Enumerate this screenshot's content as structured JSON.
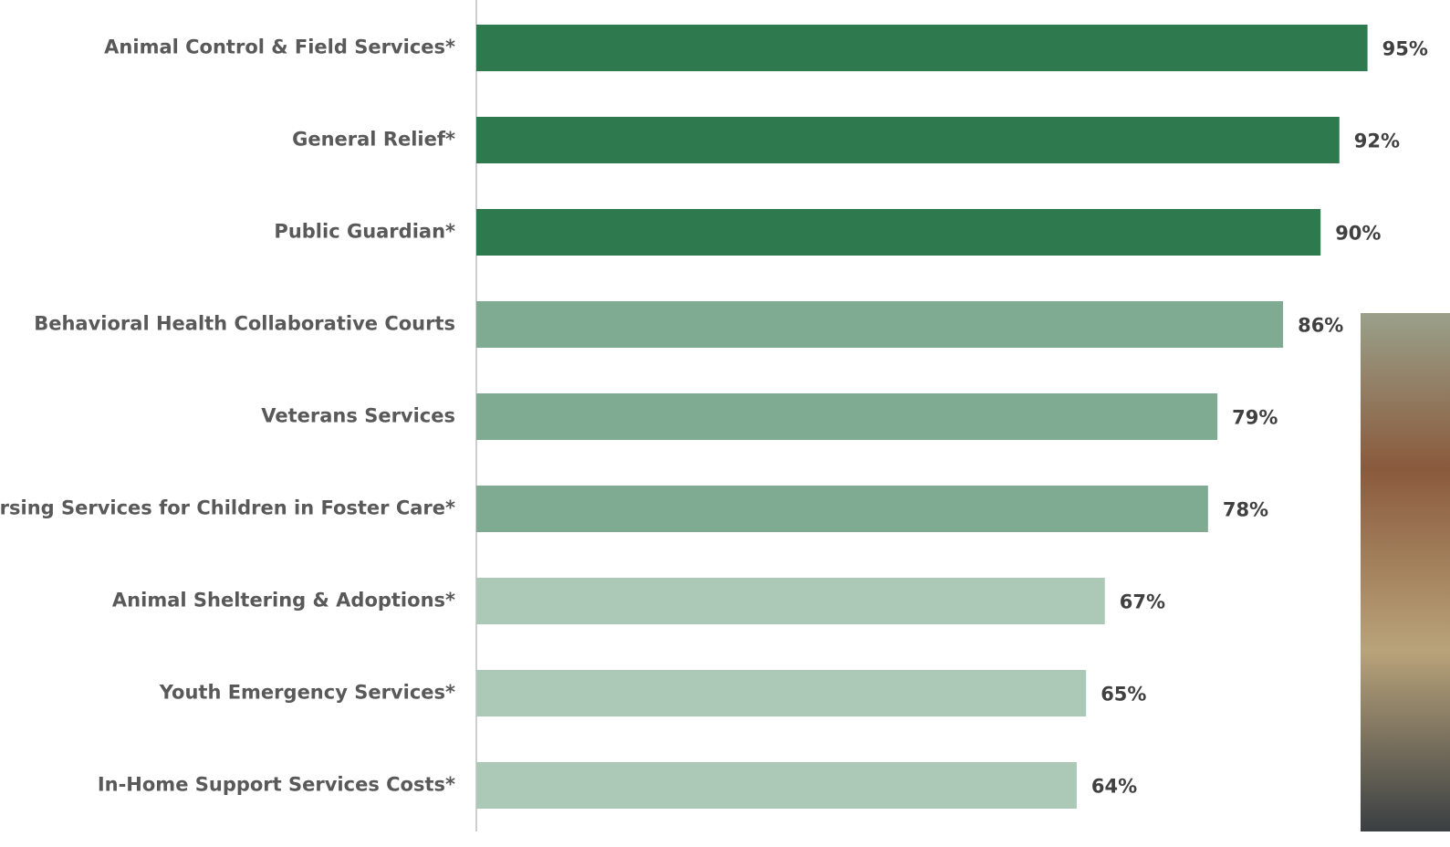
{
  "chart_data": {
    "type": "bar",
    "orientation": "horizontal",
    "categories": [
      "Animal Control & Field Services*",
      "General Relief*",
      "Public Guardian*",
      "Behavioral Health Collaborative Courts",
      "Veterans Services",
      "Nursing Services for Children in Foster Care*",
      "Animal Sheltering & Adoptions*",
      "Youth Emergency Services*",
      "In-Home Support Services Costs*"
    ],
    "values": [
      95,
      92,
      90,
      86,
      79,
      78,
      67,
      65,
      64
    ],
    "value_labels": [
      "95%",
      "92%",
      "90%",
      "86%",
      "79%",
      "78%",
      "67%",
      "65%",
      "64%"
    ],
    "colors": [
      "#2e7a4e",
      "#2e7a4e",
      "#2e7a4e",
      "#80ab93",
      "#80ab93",
      "#80ab93",
      "#abc9b6",
      "#abc9b6",
      "#abc9b6"
    ],
    "xlim": [
      0,
      100
    ]
  }
}
